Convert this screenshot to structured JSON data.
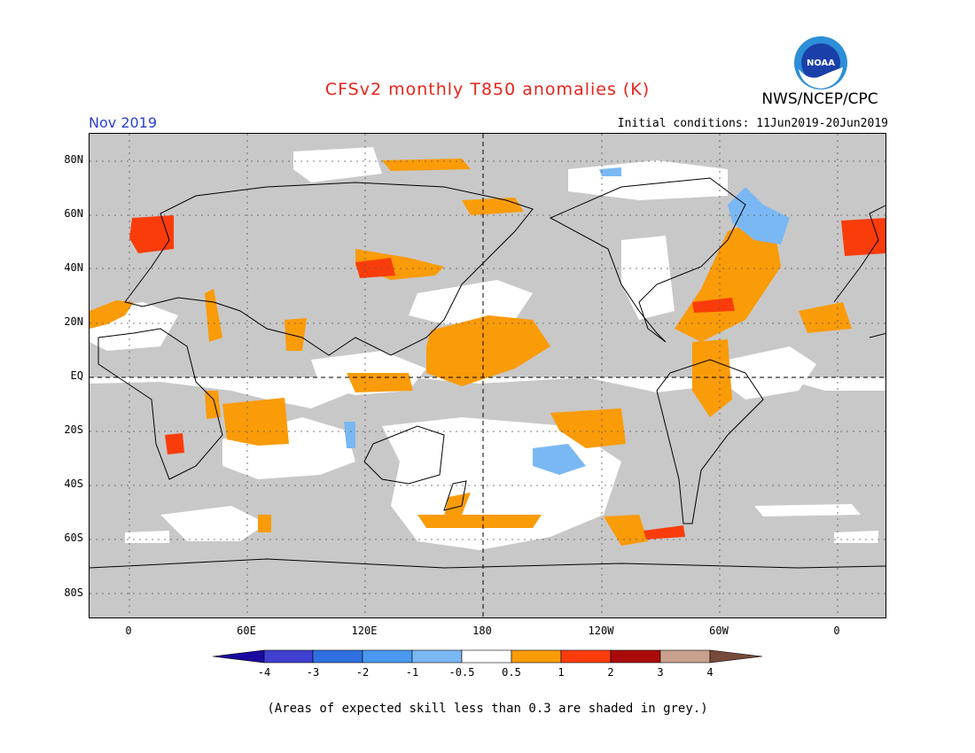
{
  "title": "CFSv2 monthly T850 anomalies (K)",
  "agency": "NWS/NCEP/CPC",
  "logo_text": "NOAA",
  "valid_month": "Nov 2019",
  "initial_conditions": "Initial conditions: 11Jun2019-20Jun2019",
  "footnote": "(Areas of expected skill less than 0.3 are shaded in grey.)",
  "lat_labels": [
    "80N",
    "60N",
    "40N",
    "20N",
    "EQ",
    "20S",
    "40S",
    "60S",
    "80S"
  ],
  "lon_labels": [
    "0",
    "60E",
    "120E",
    "180",
    "120W",
    "60W",
    "0"
  ],
  "colorbar": {
    "labels": [
      "-4",
      "-3",
      "-2",
      "-1",
      "-0.5",
      "0.5",
      "1",
      "2",
      "3",
      "4"
    ],
    "colors": [
      "#1b0aa0",
      "#3f3fd0",
      "#2f6fe0",
      "#4a98f0",
      "#7ab8f4",
      "#ffffff",
      "#fa9b08",
      "#fa3c0a",
      "#aa0a0a",
      "#c8a08c",
      "#784a3a"
    ]
  },
  "colors": {
    "skill_grey": "#c8c8c8",
    "weak_white": "#ffffff",
    "orange": "#fa9b08",
    "red_orange": "#fa3c0a",
    "light_blue": "#7ab8f4",
    "title_red": "#e8251c",
    "date_blue": "#2a3fd0"
  }
}
